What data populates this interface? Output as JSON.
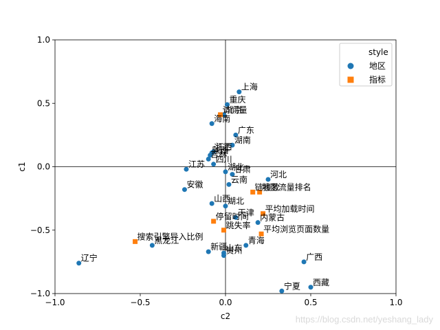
{
  "chart_data": {
    "type": "scatter",
    "title": "",
    "xlabel": "c2",
    "ylabel": "c1",
    "xlim": [
      -1.0,
      1.0
    ],
    "ylim": [
      -1.0,
      1.0
    ],
    "xticks": [
      "−1.0",
      "−0.5",
      "0.0",
      "0.5",
      "1.0"
    ],
    "xtick_values": [
      -1.0,
      -0.5,
      0.0,
      0.5,
      1.0
    ],
    "yticks": [
      "−1.0",
      "−0.5",
      "0.0",
      "0.5",
      "1.0"
    ],
    "ytick_values": [
      -1.0,
      -0.5,
      0.0,
      0.5,
      1.0
    ],
    "reference_lines": {
      "x": 0.0,
      "y": 0.0
    },
    "grid": false,
    "legend": {
      "title": "style",
      "placement": "top-right",
      "entries": [
        {
          "label": "地区",
          "marker": "circle",
          "color": "#1f77b4"
        },
        {
          "label": "指标",
          "marker": "square",
          "color": "#ff7f0e"
        }
      ]
    },
    "series": [
      {
        "name": "地区",
        "marker": "circle",
        "color": "#1f77b4",
        "points": [
          {
            "label": "上海",
            "x": 0.08,
            "y": 0.59
          },
          {
            "label": "重庆",
            "x": 0.01,
            "y": 0.49
          },
          {
            "label": "北京",
            "x": -0.01,
            "y": 0.41
          },
          {
            "label": "海南",
            "x": -0.08,
            "y": 0.34
          },
          {
            "label": "广东",
            "x": 0.06,
            "y": 0.25
          },
          {
            "label": "湖南",
            "x": 0.04,
            "y": 0.17
          },
          {
            "label": "江西",
            "x": -0.07,
            "y": 0.12
          },
          {
            "label": "浙江",
            "x": -0.08,
            "y": 0.11
          },
          {
            "label": "陕西",
            "x": -0.09,
            "y": 0.09
          },
          {
            "label": "吉林",
            "x": -0.1,
            "y": 0.06
          },
          {
            "label": "四川",
            "x": -0.07,
            "y": 0.02
          },
          {
            "label": "江苏",
            "x": -0.23,
            "y": -0.02
          },
          {
            "label": "湖北",
            "x": 0.0,
            "y": -0.04
          },
          {
            "label": "甘肃",
            "x": 0.04,
            "y": -0.06
          },
          {
            "label": "云南",
            "x": 0.02,
            "y": -0.14
          },
          {
            "label": "河北",
            "x": 0.25,
            "y": -0.1
          },
          {
            "label": "安徽",
            "x": -0.24,
            "y": -0.18
          },
          {
            "label": "山西",
            "x": -0.08,
            "y": -0.29
          },
          {
            "label": "湖北",
            "x": 0.0,
            "y": -0.31
          },
          {
            "label": "天津",
            "x": 0.06,
            "y": -0.4
          },
          {
            "label": "内蒙古",
            "x": 0.19,
            "y": -0.44
          },
          {
            "label": "黑龙江",
            "x": -0.43,
            "y": -0.62
          },
          {
            "label": "新疆",
            "x": -0.1,
            "y": -0.67
          },
          {
            "label": "山东",
            "x": -0.01,
            "y": -0.68
          },
          {
            "label": "贵州",
            "x": -0.01,
            "y": -0.7
          },
          {
            "label": "青海",
            "x": 0.12,
            "y": -0.62
          },
          {
            "label": "辽宁",
            "x": -0.86,
            "y": -0.76
          },
          {
            "label": "广西",
            "x": 0.46,
            "y": -0.75
          },
          {
            "label": "西藏",
            "x": 0.5,
            "y": -0.95
          },
          {
            "label": "宁夏",
            "x": 0.33,
            "y": -0.98
          }
        ]
      },
      {
        "name": "指标",
        "marker": "square",
        "color": "#ff7f0e",
        "points": [
          {
            "label": "访问量",
            "x": -0.03,
            "y": 0.41
          },
          {
            "label": "地区流量排名",
            "x": 0.2,
            "y": -0.2
          },
          {
            "label": "链接数",
            "x": 0.16,
            "y": -0.2
          },
          {
            "label": "平均加载时间",
            "x": 0.22,
            "y": -0.37
          },
          {
            "label": "停留时间",
            "x": -0.07,
            "y": -0.43
          },
          {
            "label": "跳失率",
            "x": -0.01,
            "y": -0.5
          },
          {
            "label": "平均浏览页面数量",
            "x": 0.21,
            "y": -0.53
          },
          {
            "label": "搜索引擎导入比例",
            "x": -0.53,
            "y": -0.59
          }
        ]
      }
    ]
  },
  "watermark": "https://blog.csdn.net/yeshang_lady"
}
